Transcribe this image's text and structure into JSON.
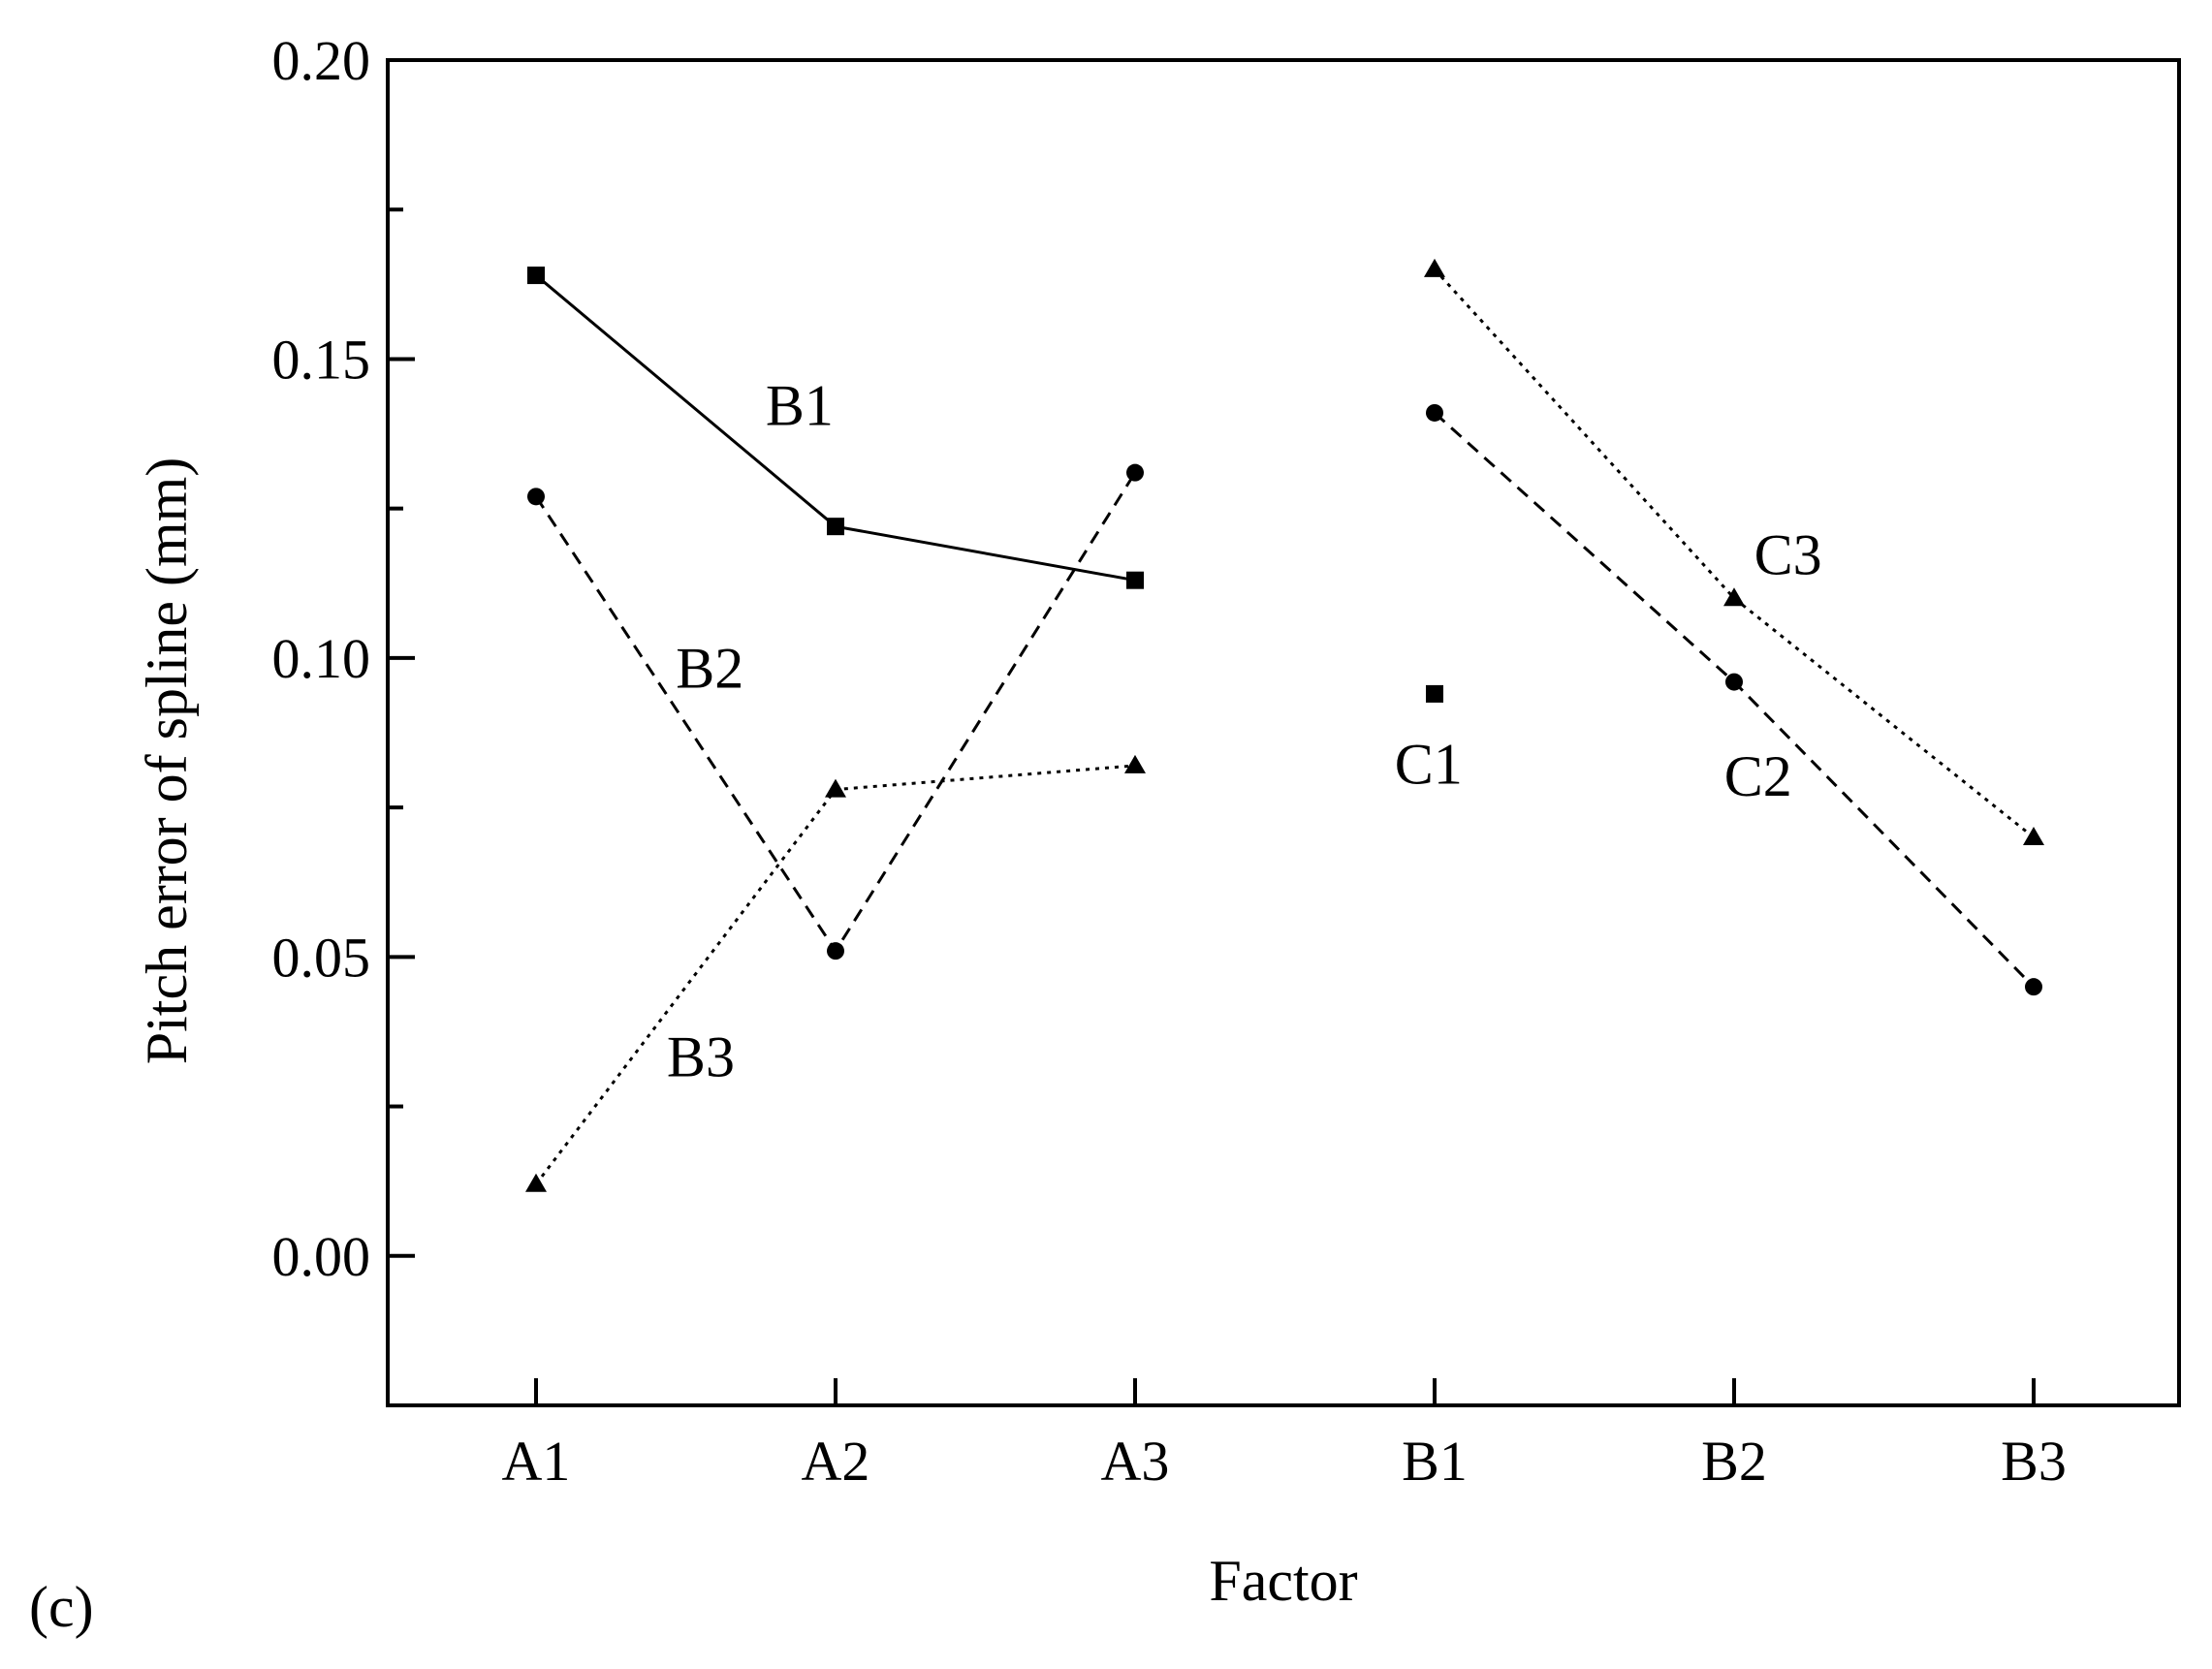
{
  "chart_data": {
    "type": "line",
    "xlabel": "Factor",
    "ylabel": "Pitch error of spline (mm)",
    "panel_label": "(c)",
    "categories": [
      "A1",
      "A2",
      "A3",
      "B1",
      "B2",
      "B3"
    ],
    "ylim": [
      -0.025,
      0.2
    ],
    "yticks": [
      0.0,
      0.05,
      0.1,
      0.15,
      0.2
    ],
    "ytick_labels": [
      "0.00",
      "0.05",
      "0.10",
      "0.15",
      "0.20"
    ],
    "minor_ytick_step": 0.025,
    "grid": false,
    "legend": "none",
    "series": [
      {
        "name": "B1",
        "marker": "square",
        "dash": "solid",
        "x": [
          "A1",
          "A2",
          "A3"
        ],
        "values": [
          0.164,
          0.122,
          0.113
        ]
      },
      {
        "name": "B2",
        "marker": "circle",
        "dash": "dashed",
        "x": [
          "A1",
          "A2",
          "A3"
        ],
        "values": [
          0.127,
          0.051,
          0.131
        ]
      },
      {
        "name": "B3",
        "marker": "triangle",
        "dash": "dotted",
        "x": [
          "A1",
          "A2",
          "A3"
        ],
        "values": [
          0.012,
          0.078,
          0.082
        ]
      },
      {
        "name": "C1",
        "marker": "square",
        "dash": "solid",
        "x": [
          "B1"
        ],
        "values": [
          0.094
        ]
      },
      {
        "name": "C2",
        "marker": "circle",
        "dash": "dashed",
        "x": [
          "B1",
          "B2",
          "B3"
        ],
        "values": [
          0.141,
          0.096,
          0.045
        ]
      },
      {
        "name": "C3",
        "marker": "triangle",
        "dash": "dotted",
        "x": [
          "B1",
          "B2",
          "B3"
        ],
        "values": [
          0.165,
          0.11,
          0.07
        ]
      }
    ],
    "annotations": [
      {
        "text": "B1",
        "x": "A2",
        "dx": -0.12,
        "y": 0.139
      },
      {
        "text": "B2",
        "x": "A1",
        "dx": 0.58,
        "y": 0.095
      },
      {
        "text": "B3",
        "x": "A1",
        "dx": 0.55,
        "y": 0.03
      },
      {
        "text": "C1",
        "x": "B1",
        "dx": -0.02,
        "y": 0.079
      },
      {
        "text": "C2",
        "x": "B2",
        "dx": 0.08,
        "y": 0.077
      },
      {
        "text": "C3",
        "x": "B2",
        "dx": 0.18,
        "y": 0.114
      }
    ]
  }
}
